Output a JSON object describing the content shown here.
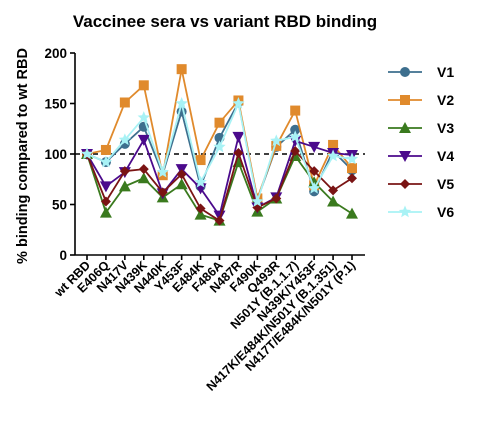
{
  "chart_data": {
    "type": "line",
    "title": "Vaccinee sera vs variant RBD binding",
    "ylabel": "% binding compared to wt RBD",
    "xlabel": "",
    "ylim": [
      0,
      200
    ],
    "yticks": [
      0,
      50,
      100,
      150,
      200
    ],
    "reference_line": 100,
    "legend_position": "right",
    "categories": [
      "wt RBD",
      "E406Q",
      "N417V",
      "N439K",
      "N440K",
      "Y453F",
      "E484K",
      "F486A",
      "N487R",
      "F490K",
      "Q493R",
      "N501Y (B.1.1.7)",
      "N439K/Y453F",
      "N417K/E484K/N501Y (B.1.351)",
      "N417T/E484K/N501Y (P.1)"
    ],
    "series": [
      {
        "name": "V1",
        "color": "#3d6f8e",
        "marker": "circle",
        "values": [
          100,
          92,
          110,
          127,
          80,
          142,
          68,
          116,
          151,
          55,
          107,
          124,
          63,
          103,
          84
        ]
      },
      {
        "name": "V2",
        "color": "#e08a2c",
        "marker": "square",
        "values": [
          100,
          104,
          151,
          168,
          79,
          184,
          94,
          131,
          153,
          56,
          108,
          143,
          69,
          109,
          86
        ]
      },
      {
        "name": "V3",
        "color": "#3a7a1e",
        "marker": "triangle-up",
        "values": [
          100,
          42,
          68,
          76,
          57,
          70,
          40,
          34,
          92,
          43,
          56,
          98,
          72,
          53,
          41
        ]
      },
      {
        "name": "V4",
        "color": "#4b0a8c",
        "marker": "triangle-down",
        "values": [
          100,
          68,
          82,
          114,
          61,
          85,
          66,
          39,
          117,
          47,
          57,
          113,
          107,
          101,
          99
        ]
      },
      {
        "name": "V5",
        "color": "#7a1414",
        "marker": "diamond",
        "values": [
          100,
          53,
          83,
          85,
          62,
          80,
          46,
          34,
          101,
          47,
          56,
          103,
          83,
          64,
          76
        ]
      },
      {
        "name": "V6",
        "color": "#a8f2f5",
        "marker": "star",
        "values": [
          100,
          92,
          114,
          136,
          82,
          150,
          72,
          107,
          150,
          53,
          113,
          117,
          66,
          98,
          95
        ]
      }
    ]
  }
}
